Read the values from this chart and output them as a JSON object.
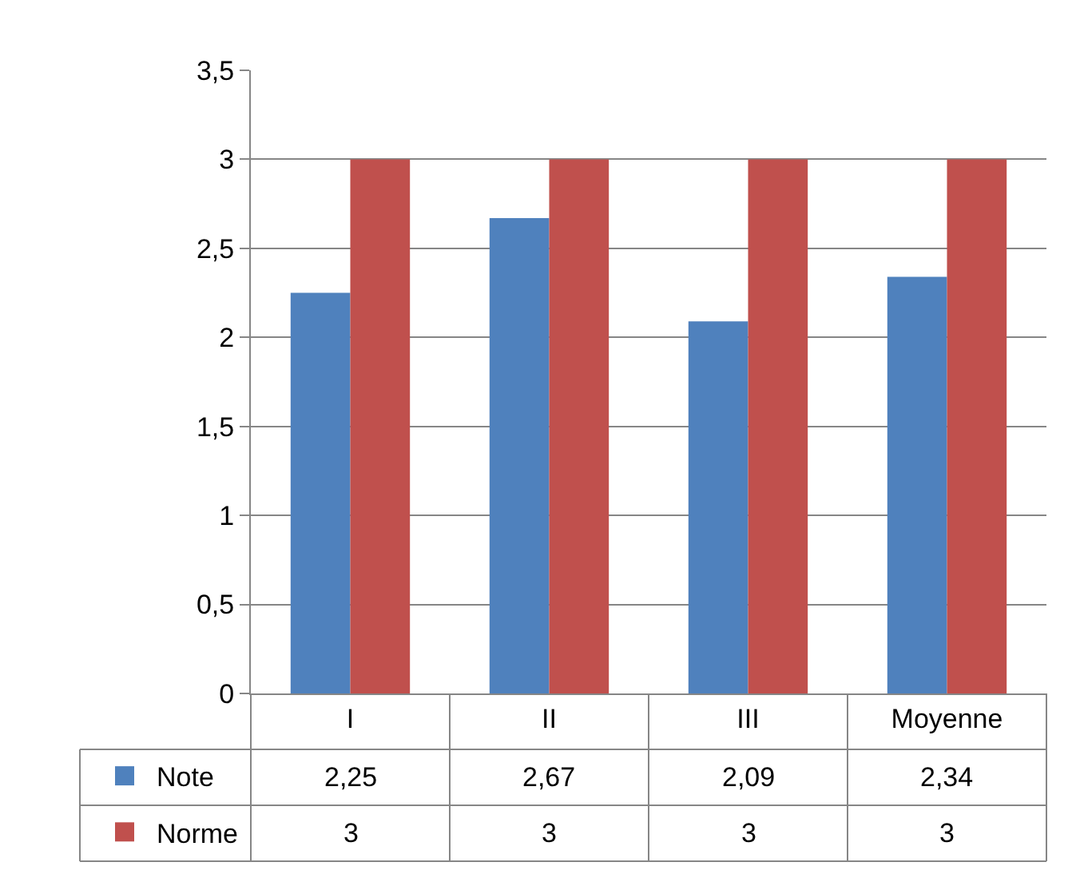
{
  "chart_data": {
    "type": "bar",
    "categories": [
      "I",
      "II",
      "III",
      "Moyenne"
    ],
    "series": [
      {
        "name": "Note",
        "color": "#4f81bd",
        "values": [
          2.25,
          2.67,
          2.09,
          2.34
        ],
        "value_labels": [
          "2,25",
          "2,67",
          "2,09",
          "2,34"
        ]
      },
      {
        "name": "Norme",
        "color": "#c0504d",
        "values": [
          3,
          3,
          3,
          3
        ],
        "value_labels": [
          "3",
          "3",
          "3",
          "3"
        ]
      }
    ],
    "ylim": [
      0,
      3.5
    ],
    "yticks": [
      0,
      {
        "value": 0.5,
        "label": "0,5"
      },
      1,
      {
        "value": 1.5,
        "label": "1,5"
      },
      2,
      {
        "value": 2.5,
        "label": "2,5"
      },
      3,
      {
        "value": 3.5,
        "label": "3,5"
      }
    ],
    "grid": "y",
    "legend": "bottom left"
  }
}
